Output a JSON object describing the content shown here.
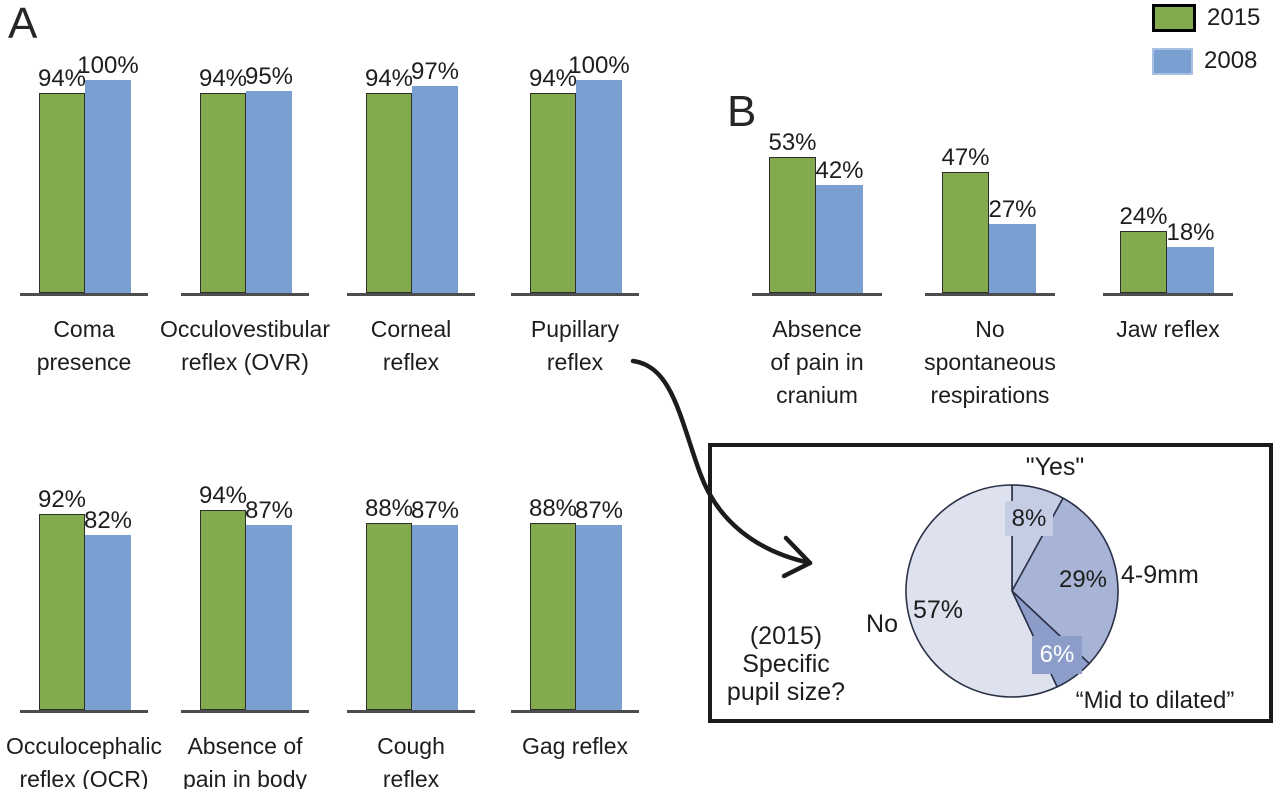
{
  "figure": {
    "panel_a_label": "A",
    "panel_b_label": "B",
    "background": "#ffffff",
    "text_color": "#1d1d1d",
    "legend": [
      {
        "label": "2015",
        "color": "#84aa4e",
        "border": "#000000"
      },
      {
        "label": "2008",
        "color": "#7aa0d2",
        "border": "#a7c1e3"
      }
    ]
  },
  "chart_data": [
    {
      "type": "bar",
      "panel": "A",
      "categories": [
        "Coma presence",
        "Occulovestibular reflex (OVR)",
        "Corneal reflex",
        "Pupillary reflex",
        "Occulocephalic reflex (OCR)",
        "Absence of pain in body",
        "Cough reflex",
        "Gag reflex"
      ],
      "category_lines": [
        [
          "Coma",
          "presence"
        ],
        [
          "Occulovestibular",
          "reflex (OVR)"
        ],
        [
          "Corneal",
          "reflex"
        ],
        [
          "Pupillary",
          "reflex"
        ],
        [
          "Occulocephalic",
          "reflex (OCR)"
        ],
        [
          "Absence of",
          "pain in body"
        ],
        [
          "Cough",
          "reflex"
        ],
        [
          "Gag reflex"
        ]
      ],
      "series": [
        {
          "name": "2015",
          "color": "#84aa4e",
          "values": [
            94,
            94,
            94,
            94,
            92,
            94,
            88,
            88
          ]
        },
        {
          "name": "2008",
          "color": "#7aa0d2",
          "values": [
            100,
            95,
            97,
            100,
            82,
            87,
            87,
            87
          ]
        }
      ],
      "value_suffix": "%",
      "ylim": [
        0,
        100
      ],
      "grid": false,
      "legend_position": "top-right"
    },
    {
      "type": "bar",
      "panel": "B",
      "categories": [
        "Absence of pain in cranium",
        "No spontaneous respirations",
        "Jaw reflex"
      ],
      "category_lines": [
        [
          "Absence",
          "of pain in",
          "cranium"
        ],
        [
          "No",
          "spontaneous",
          "respirations"
        ],
        [
          "Jaw reflex"
        ]
      ],
      "series": [
        {
          "name": "2015",
          "color": "#84aa4e",
          "values": [
            53,
            47,
            24
          ]
        },
        {
          "name": "2008",
          "color": "#7aa0d2",
          "values": [
            42,
            27,
            18
          ]
        }
      ],
      "value_suffix": "%",
      "ylim": [
        0,
        100
      ],
      "grid": false
    },
    {
      "type": "pie",
      "panel": "inset",
      "question": "(2015) Specific pupil size?",
      "question_lines": [
        "(2015)",
        "Specific",
        "pupil size?"
      ],
      "slices": [
        {
          "label": "\"Yes\"",
          "value": 8,
          "color": "#c4cde4"
        },
        {
          "label": "4-9mm",
          "value": 29,
          "color": "#a8b4d6"
        },
        {
          "label": "“Mid to dilated”",
          "value": 6,
          "color": "#8c9dca"
        },
        {
          "label": "No",
          "value": 57,
          "color": "#dee2ef"
        }
      ],
      "value_suffix": "%",
      "outline_color": "#2b3147",
      "start_angle": "top",
      "direction": "clockwise"
    }
  ]
}
